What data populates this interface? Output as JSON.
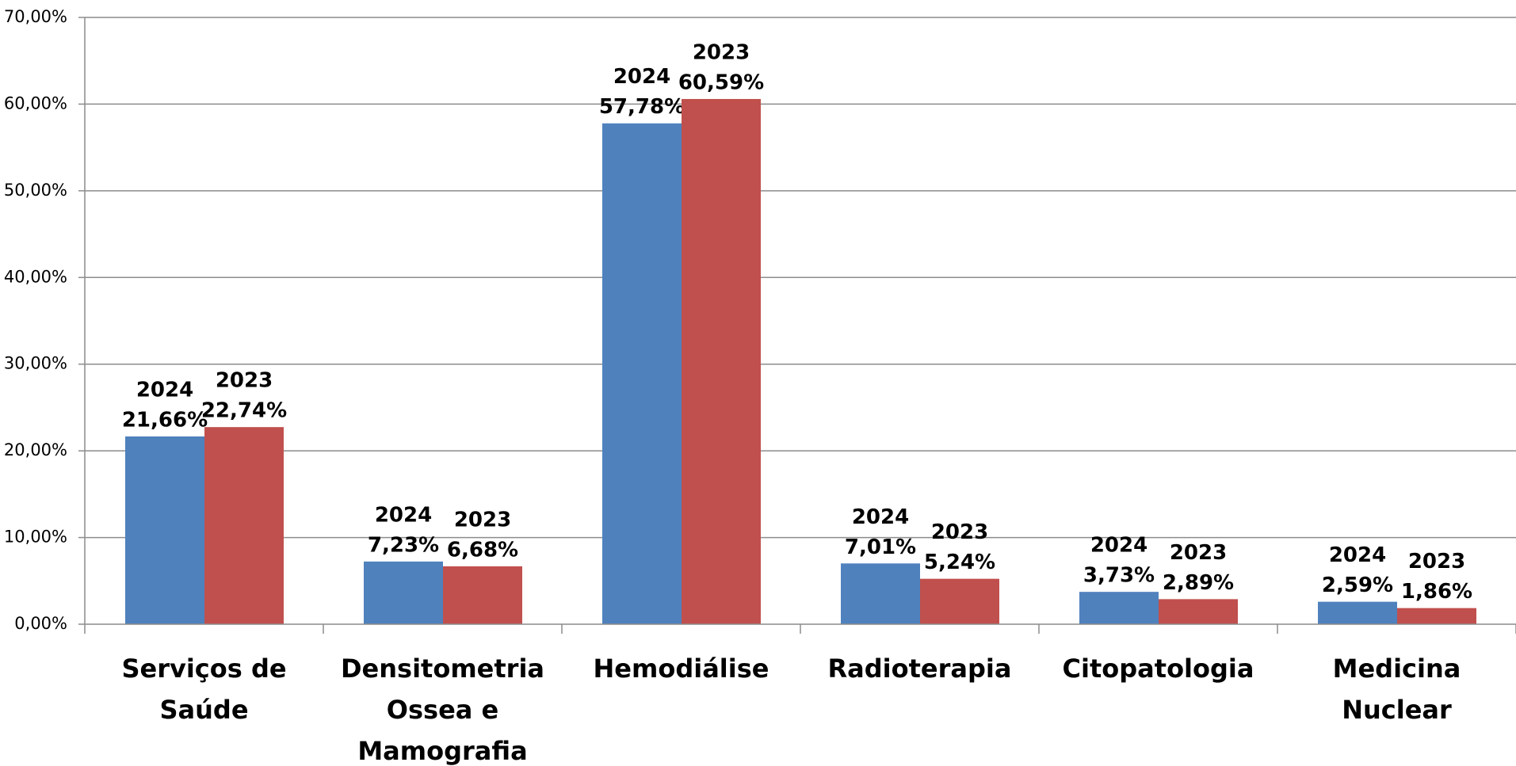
{
  "chart_data": {
    "type": "bar",
    "categories": [
      "Serviços de Saúde",
      "Densitometria Ossea e Mamografia",
      "Hemodiálise",
      "Radioterapia",
      "Citopatologia",
      "Medicina Nuclear"
    ],
    "series": [
      {
        "name": "2024",
        "color": "#4f81bd",
        "values": [
          21.66,
          7.23,
          57.78,
          7.01,
          3.73,
          2.59
        ],
        "value_labels": [
          "21,66%",
          "7,23%",
          "57,78%",
          "7,01%",
          "3,73%",
          "2,59%"
        ]
      },
      {
        "name": "2023",
        "color": "#c0504d",
        "values": [
          22.74,
          6.68,
          60.59,
          5.24,
          2.89,
          1.86
        ],
        "value_labels": [
          "22,74%",
          "6,68%",
          "60,59%",
          "5,24%",
          "2,89%",
          "1,86%"
        ]
      }
    ],
    "ylim": [
      0,
      70
    ],
    "yticks": [
      {
        "value": 0,
        "label": "0,00%"
      },
      {
        "value": 10,
        "label": "10,00%"
      },
      {
        "value": 20,
        "label": "20,00%"
      },
      {
        "value": 30,
        "label": "30,00%"
      },
      {
        "value": 40,
        "label": "40,00%"
      },
      {
        "value": 50,
        "label": "50,00%"
      },
      {
        "value": 60,
        "label": "60,00%"
      },
      {
        "value": 70,
        "label": "70,00%"
      }
    ],
    "grid": true
  }
}
